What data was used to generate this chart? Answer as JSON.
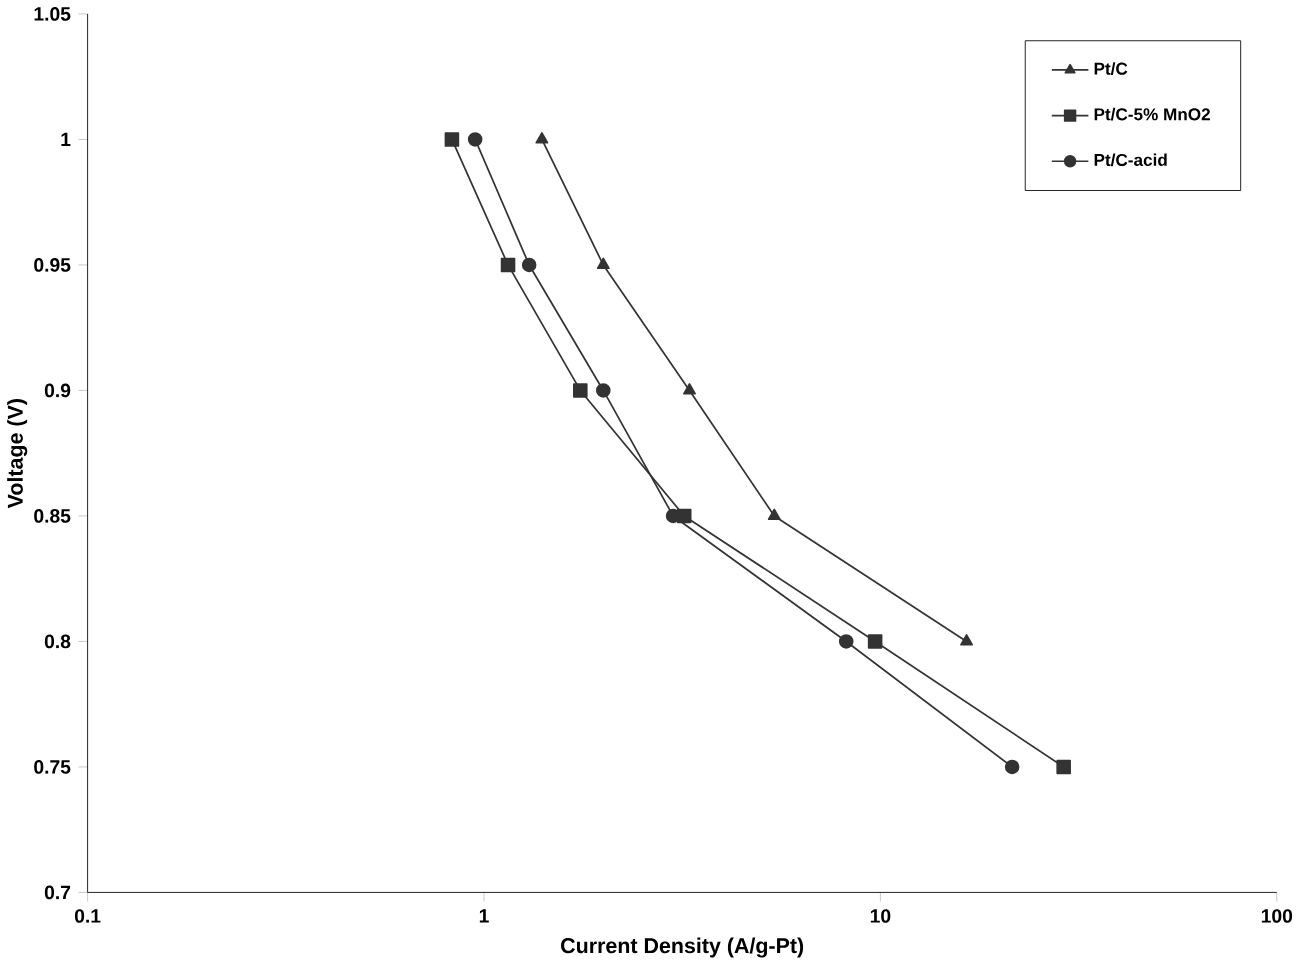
{
  "chart_data": {
    "type": "line",
    "xlabel": "Current Density (A/g-Pt)",
    "ylabel": "Voltage (V)",
    "log": "x",
    "xlim": [
      0.1,
      100
    ],
    "xticks": [
      0.1,
      1,
      10,
      100
    ],
    "ylim": [
      0.7,
      1.05
    ],
    "yticks": [
      0.7,
      0.75,
      0.8,
      0.85,
      0.9,
      0.95,
      1,
      1.05
    ],
    "grid": false,
    "legend": "top right",
    "line_style": "solid",
    "series": [
      {
        "name": "Pt/C",
        "color": "#333333",
        "marker": "triangle",
        "x": [
          1.4,
          2.0,
          3.3,
          5.4,
          16.5
        ],
        "values": [
          1.0,
          0.95,
          0.9,
          0.85,
          0.8
        ]
      },
      {
        "name": "Pt/C-5% MnO2",
        "color": "#333333",
        "marker": "square",
        "x": [
          0.83,
          1.15,
          1.75,
          3.2,
          9.7,
          29
        ],
        "values": [
          1.0,
          0.95,
          0.9,
          0.85,
          0.8,
          0.75
        ]
      },
      {
        "name": "Pt/C-acid",
        "color": "#333333",
        "marker": "circle",
        "x": [
          0.95,
          1.3,
          2.0,
          3.0,
          8.2,
          21.5
        ],
        "values": [
          1.0,
          0.95,
          0.9,
          0.85,
          0.8,
          0.75
        ]
      }
    ]
  }
}
